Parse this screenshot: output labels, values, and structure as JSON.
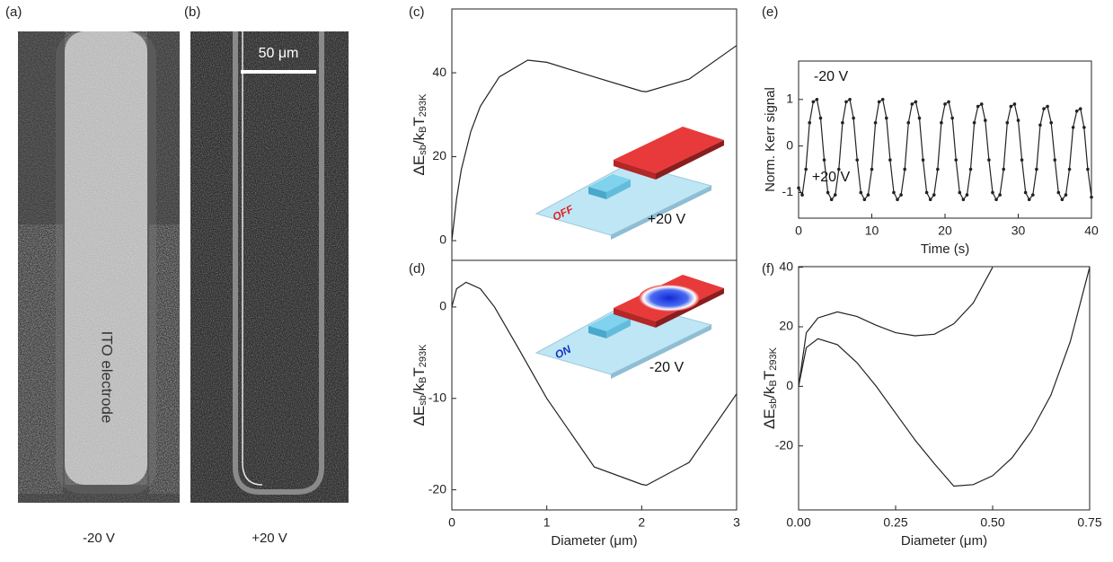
{
  "panels": {
    "a": {
      "label": "(a)",
      "caption": "-20 V",
      "annotation": "ITO electrode"
    },
    "b": {
      "label": "(b)",
      "caption": "+20 V",
      "scale_bar": "50 μm"
    }
  },
  "chart_data": [
    {
      "type": "line",
      "label": "(c)",
      "ylabel": [
        "ΔE",
        "sb",
        "/k",
        "B",
        "T",
        "293K"
      ],
      "x": [
        0,
        0.05,
        0.1,
        0.2,
        0.3,
        0.5,
        0.8,
        1.0,
        1.5,
        2.0,
        2.05,
        2.5,
        3.0
      ],
      "series": [
        {
          "color": "#222222",
          "values": [
            0,
            10,
            17,
            26,
            32,
            39,
            43,
            42.5,
            39,
            35.6,
            35.5,
            38.5,
            46.5
          ]
        }
      ],
      "xlim": [
        0,
        3
      ],
      "ylim": [
        -4.7,
        55.2
      ],
      "yticks": [
        0,
        20,
        40
      ],
      "annotations": [
        {
          "text": "+20 V",
          "color": "#111111"
        },
        {
          "text": "OFF",
          "color": "#e02020"
        }
      ]
    },
    {
      "type": "line",
      "label": "(d)",
      "ylabel": [
        "ΔE",
        "sb",
        "/k",
        "B",
        "T",
        "293K"
      ],
      "xlabel": "Diameter (μm)",
      "x": [
        0,
        0.05,
        0.15,
        0.3,
        0.45,
        0.7,
        1.0,
        1.5,
        2.0,
        2.05,
        2.5,
        3.0
      ],
      "series": [
        {
          "color": "#222222",
          "values": [
            0,
            2,
            2.7,
            2,
            0,
            -4.5,
            -10,
            -17.5,
            -19.4,
            -19.5,
            -17,
            -9.5
          ]
        }
      ],
      "xlim": [
        0,
        3
      ],
      "ylim": [
        -22.2,
        5.1
      ],
      "xticks": [
        0,
        1,
        2,
        3
      ],
      "yticks": [
        -20,
        -10,
        0
      ],
      "annotations": [
        {
          "text": "-20 V",
          "color": "#111111"
        },
        {
          "text": "ON",
          "color": "#1530c0"
        }
      ]
    },
    {
      "type": "line",
      "label": "(e)",
      "markers": true,
      "ylabel": "Norm. Kerr signal",
      "xlabel": "Time (s)",
      "x": [
        0,
        0.5,
        1,
        1.5,
        2,
        2.5,
        3,
        3.5,
        4,
        4.5,
        5,
        5.5,
        6,
        6.5,
        7,
        7.5,
        8,
        8.5,
        9,
        9.5,
        10,
        10.5,
        11,
        11.5,
        12,
        12.5,
        13,
        13.5,
        14,
        14.5,
        15,
        15.5,
        16,
        16.5,
        17,
        17.5,
        18,
        18.5,
        19,
        19.5,
        20,
        20.5,
        21,
        21.5,
        22,
        22.5,
        23,
        23.5,
        24,
        24.5,
        25,
        25.5,
        26,
        26.5,
        27,
        27.5,
        28,
        28.5,
        29,
        29.5,
        30,
        30.5,
        31,
        31.5,
        32,
        32.5,
        33,
        33.5,
        34,
        34.5,
        35,
        35.5,
        36,
        36.5,
        37,
        37.5,
        38,
        38.5,
        39,
        39.5,
        40
      ],
      "series": [
        {
          "color": "#222222",
          "values": [
            -0.9,
            -1.05,
            -0.5,
            0.5,
            0.95,
            1.0,
            0.6,
            -0.3,
            -1.0,
            -1.15,
            -1.05,
            -0.5,
            0.5,
            0.95,
            1.0,
            0.6,
            -0.3,
            -1.0,
            -1.15,
            -1.05,
            -0.5,
            0.5,
            0.95,
            1.0,
            0.6,
            -0.3,
            -1.0,
            -1.15,
            -1.05,
            -0.5,
            0.5,
            0.9,
            0.95,
            0.6,
            -0.3,
            -1.0,
            -1.15,
            -1.05,
            -0.5,
            0.5,
            0.9,
            0.95,
            0.6,
            -0.3,
            -1.0,
            -1.15,
            -1.05,
            -0.5,
            0.5,
            0.85,
            0.9,
            0.55,
            -0.3,
            -1.0,
            -1.15,
            -1.05,
            -0.5,
            0.5,
            0.85,
            0.9,
            0.55,
            -0.3,
            -1.0,
            -1.15,
            -1.05,
            -0.5,
            0.45,
            0.8,
            0.85,
            0.5,
            -0.3,
            -1.0,
            -1.15,
            -1.05,
            -0.5,
            0.4,
            0.75,
            0.8,
            0.4,
            -0.5,
            -1.1
          ]
        }
      ],
      "xlim": [
        0,
        40
      ],
      "ylim": [
        -1.55,
        1.825
      ],
      "xticks": [
        0,
        10,
        20,
        30,
        40
      ],
      "yticks": [
        -1,
        0,
        1
      ],
      "annotations": [
        {
          "text": "-20 V",
          "color": "#111111"
        },
        {
          "text": "+20 V",
          "color": "#111111"
        }
      ]
    },
    {
      "type": "line",
      "label": "(f)",
      "ylabel": [
        "ΔE",
        "sb",
        "/k",
        "B",
        "T",
        "293K"
      ],
      "xlabel": "Diameter (μm)",
      "x": [
        0,
        0.02,
        0.05,
        0.1,
        0.15,
        0.2,
        0.25,
        0.3,
        0.35,
        0.4,
        0.45,
        0.5,
        0.55,
        0.6,
        0.65,
        0.7,
        0.75
      ],
      "series": [
        {
          "color": "#222222",
          "values": [
            0,
            18,
            23,
            25,
            23.5,
            20.5,
            18,
            17,
            17.5,
            21,
            28,
            40,
            null,
            null,
            null,
            null,
            null
          ]
        },
        {
          "color": "#222222",
          "values": [
            0,
            13,
            16,
            14,
            8,
            0,
            -9,
            -18,
            -26,
            -33.5,
            -33,
            -30,
            -24,
            -15,
            -3,
            15,
            40
          ]
        }
      ],
      "xlim": [
        0,
        0.75
      ],
      "ylim": [
        -41.5,
        40.2
      ],
      "xticks": [
        {
          "value": 0,
          "label": "0.00"
        },
        0.25,
        {
          "value": 0.5,
          "label": "0.50"
        },
        0.75
      ],
      "yticks": [
        -20,
        0,
        20,
        40
      ]
    }
  ]
}
